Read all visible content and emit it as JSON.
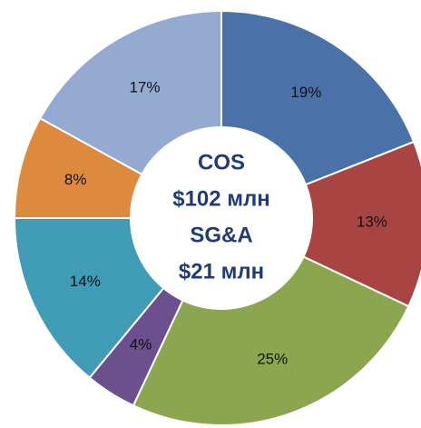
{
  "chart_data": {
    "type": "donut",
    "values": [
      19,
      13,
      25,
      4,
      14,
      8,
      17
    ],
    "value_labels": [
      "19%",
      "13%",
      "25%",
      "4%",
      "14%",
      "8%",
      "17%"
    ],
    "colors": [
      "#4a72a8",
      "#a84542",
      "#8ba64f",
      "#6b4f8f",
      "#3f9bb6",
      "#de8a3e",
      "#95aad1"
    ],
    "center_text": [
      "COS",
      "$102 млн",
      "SG&A",
      "$21 млн"
    ]
  }
}
